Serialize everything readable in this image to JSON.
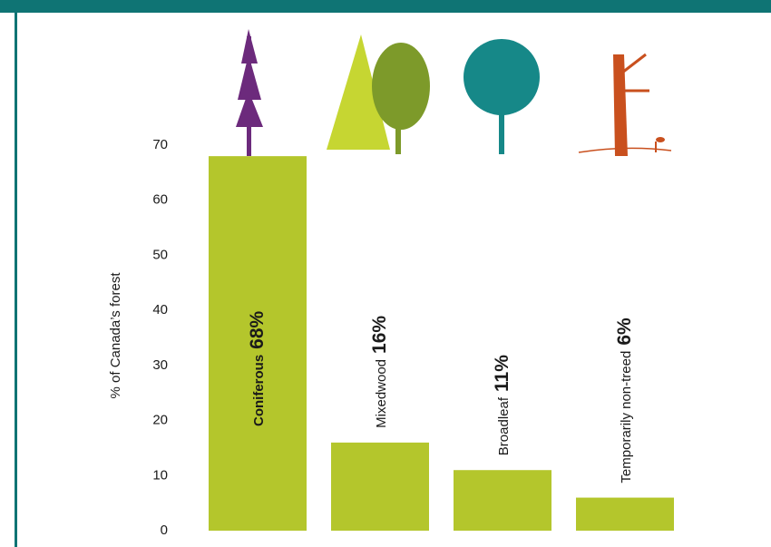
{
  "chart_data": {
    "type": "bar",
    "y_label": "% of Canada’s forest",
    "categories": [
      "Coniferous",
      "Mixedwood",
      "Broadleaf",
      "Temporarily non-treed"
    ],
    "values": [
      68,
      16,
      11,
      6
    ],
    "value_labels": [
      "68%",
      "16%",
      "11%",
      "6%"
    ],
    "color": "#b4c62c",
    "ylim": [
      0,
      70
    ],
    "yticks": [
      0,
      10,
      20,
      30,
      40,
      50,
      60,
      70
    ],
    "grid": false
  }
}
